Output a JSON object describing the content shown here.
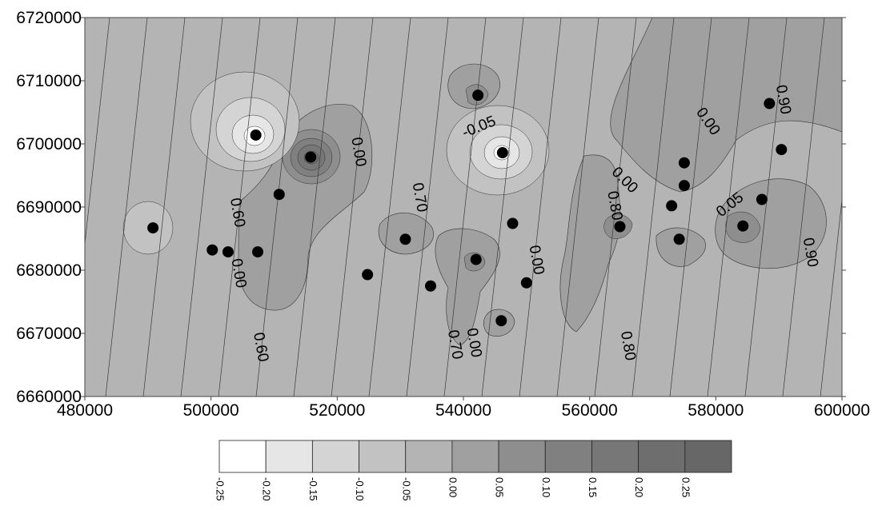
{
  "chart_data": {
    "type": "contour",
    "title": "",
    "xlabel": "",
    "ylabel": "",
    "xlim": [
      480000,
      600000
    ],
    "ylim": [
      6660000,
      6720000
    ],
    "x_ticks": [
      "480000",
      "500000",
      "520000",
      "540000",
      "560000",
      "580000",
      "600000"
    ],
    "y_ticks": [
      "6660000",
      "6670000",
      "6680000",
      "6690000",
      "6700000",
      "6710000",
      "6720000"
    ],
    "x_tick_values": [
      480000,
      500000,
      520000,
      540000,
      560000,
      580000,
      600000
    ],
    "y_tick_values": [
      6660000,
      6670000,
      6680000,
      6690000,
      6700000,
      6710000,
      6720000
    ],
    "background_color": "#b4b4b4",
    "points": [
      [
        490800,
        6686700
      ],
      [
        500200,
        6683200
      ],
      [
        502700,
        6682900
      ],
      [
        507100,
        6701400
      ],
      [
        507400,
        6682900
      ],
      [
        510800,
        6692000
      ],
      [
        515800,
        6697900
      ],
      [
        524800,
        6679300
      ],
      [
        530800,
        6684900
      ],
      [
        534800,
        6677500
      ],
      [
        542000,
        6681700
      ],
      [
        542300,
        6707700
      ],
      [
        546000,
        6672000
      ],
      [
        546200,
        6698600
      ],
      [
        547800,
        6687400
      ],
      [
        550000,
        6678000
      ],
      [
        564800,
        6686900
      ],
      [
        573000,
        6690200
      ],
      [
        574200,
        6684900
      ],
      [
        575000,
        6697000
      ],
      [
        575000,
        6693400
      ],
      [
        584300,
        6687000
      ],
      [
        587300,
        6691200
      ],
      [
        588500,
        6706400
      ],
      [
        590400,
        6699100
      ]
    ],
    "contour_labels": [
      {
        "text": "0.60",
        "x": 504100,
        "y": 6689100,
        "rot": 80
      },
      {
        "text": "0.00",
        "x": 504300,
        "y": 6679500,
        "rot": 80
      },
      {
        "text": "0.60",
        "x": 507800,
        "y": 6667800,
        "rot": 80
      },
      {
        "text": "0.00",
        "x": 523300,
        "y": 6698700,
        "rot": 80
      },
      {
        "text": "0.70",
        "x": 533000,
        "y": 6691500,
        "rot": 80
      },
      {
        "text": "-0.05",
        "x": 542500,
        "y": 6702600,
        "rot": -22
      },
      {
        "text": "0.00",
        "x": 551500,
        "y": 6681600,
        "rot": 80
      },
      {
        "text": "0.70",
        "x": 538600,
        "y": 6668200,
        "rot": 80
      },
      {
        "text": "0.00",
        "x": 541600,
        "y": 6668500,
        "rot": 80
      },
      {
        "text": "0.00",
        "x": 565500,
        "y": 6694200,
        "rot": 45
      },
      {
        "text": "0.80",
        "x": 563900,
        "y": 6690200,
        "rot": 80
      },
      {
        "text": "0.80",
        "x": 566000,
        "y": 6668000,
        "rot": 80
      },
      {
        "text": "0.00",
        "x": 578700,
        "y": 6703500,
        "rot": 55
      },
      {
        "text": "0.05",
        "x": 582300,
        "y": 6690300,
        "rot": -38
      },
      {
        "text": "0.90",
        "x": 590600,
        "y": 6707000,
        "rot": 80
      },
      {
        "text": "0.90",
        "x": 594900,
        "y": 6682800,
        "rot": 80
      }
    ],
    "colorbar": {
      "ticks": [
        "-0.25",
        "-0.20",
        "-0.15",
        "-0.10",
        "-0.05",
        "0.00",
        "0.05",
        "0.10",
        "0.15",
        "0.20",
        "0.25"
      ],
      "colors": [
        "#ffffff",
        "#e6e6e6",
        "#d4d4d4",
        "#c2c2c2",
        "#b4b4b4",
        "#a0a0a0",
        "#8e8e8e",
        "#808080",
        "#777777",
        "#6e6e6e",
        "#676767"
      ]
    }
  }
}
